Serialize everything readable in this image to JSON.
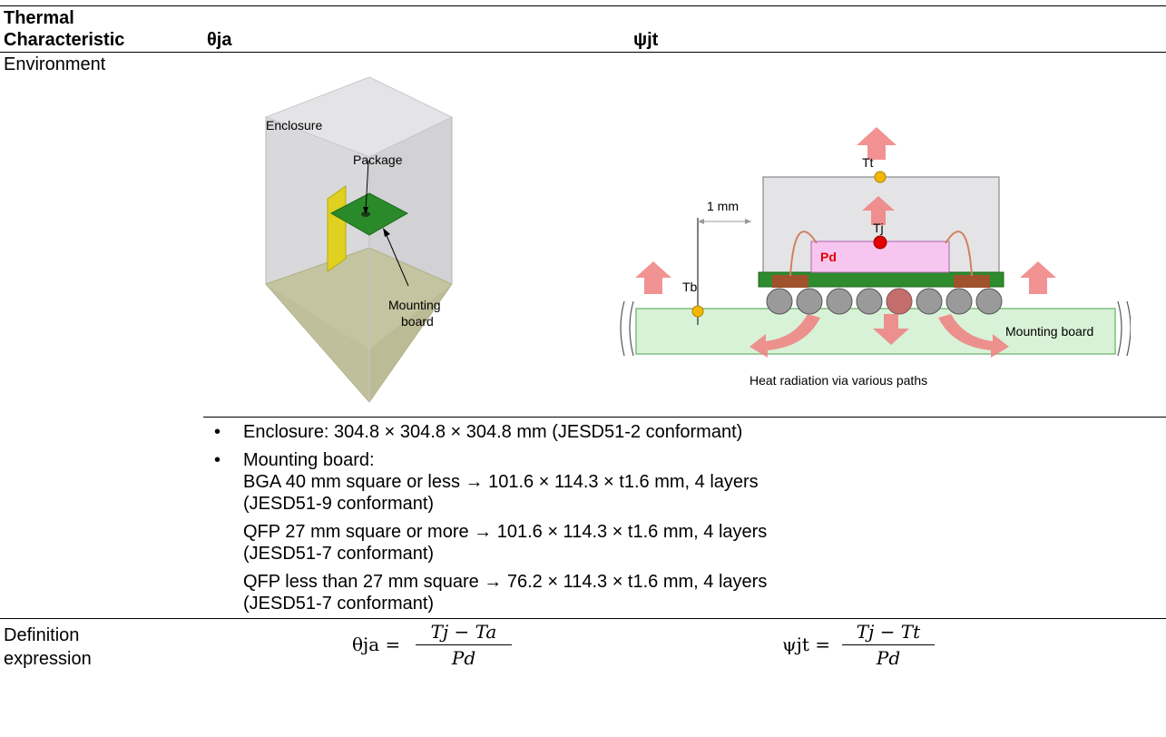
{
  "header": {
    "col1_line1": "Thermal",
    "col1_line2": "Characteristic",
    "col2": "θja",
    "col3": "ψjt"
  },
  "environment": {
    "label": "Environment",
    "enclosure_fig": {
      "enclosure_label": "Enclosure",
      "package_label": "Package",
      "mounting_label_1": "Mounting",
      "mounting_label_2": "board"
    },
    "package_fig": {
      "tt_label": "Tt",
      "tj_label": "Tj",
      "tb_label": "Tb",
      "pd_label": "Pd",
      "distance_label": "1 mm",
      "board_label": "Mounting board",
      "caption": "Heat radiation via various paths"
    },
    "bullets": [
      "Enclosure: 304.8 × 304.8 × 304.8 mm (JESD51-2 conformant)",
      "Mounting board:"
    ],
    "board_specs": [
      "BGA 40 mm square or less → 101.6 × 114.3 × t1.6 mm, 4 layers",
      "(JESD51-9 conformant)",
      "QFP 27 mm square or more → 101.6 × 114.3 × t1.6 mm, 4 layers",
      "(JESD51-7 conformant)",
      "QFP less than 27 mm square → 76.2 × 114.3 × t1.6 mm, 4 layers",
      "(JESD51-7 conformant)"
    ]
  },
  "definition": {
    "label_line1": "Definition",
    "label_line2": "expression",
    "theta": {
      "lhs": "θja =",
      "numerator": "Tj − Ta",
      "denominator": "Pd"
    },
    "psi": {
      "lhs": "ψjt =",
      "numerator": "Tj − Tt",
      "denominator": "Pd"
    }
  },
  "colors": {
    "board_green": "#2e8b2e",
    "board_fill": "#d8f2d8",
    "arrow_pink": "#f08080",
    "pd_fill": "#f7c6f0",
    "pd_text": "#e00000",
    "tj_dot": "#e00000",
    "tt_dot": "#f2b800",
    "yellow_board": "#e0d020"
  },
  "icons": [
    "heat-arrow-icon",
    "temperature-point-icon",
    "solder-ball-icon"
  ]
}
